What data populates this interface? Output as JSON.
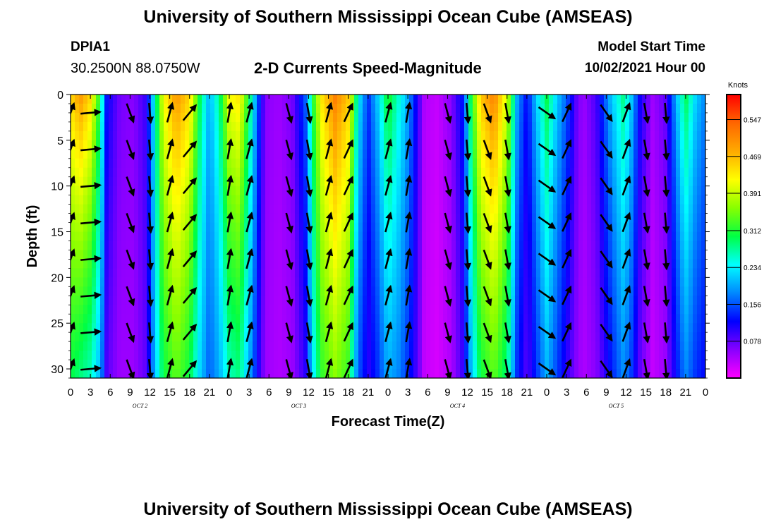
{
  "header": {
    "title_top": "University of Southern Mississippi Ocean Cube (AMSEAS)",
    "title_bottom": "University of Southern Mississippi Ocean Cube (AMSEAS)",
    "station_id": "DPIA1",
    "station_coords": "30.2500N  88.0750W",
    "model_start_label": "Model Start Time",
    "model_start_value": "10/02/2021 Hour 00"
  },
  "chart_data": {
    "type": "heatmap",
    "title": "2-D Currents Speed-Magnitude",
    "xlabel": "Forecast Time(Z)",
    "ylabel": "Depth (ft)",
    "x_tick_labels": [
      "0",
      "3",
      "6",
      "9",
      "12",
      "15",
      "18",
      "21",
      "0",
      "3",
      "6",
      "9",
      "12",
      "15",
      "18",
      "21",
      "0",
      "3",
      "6",
      "9",
      "12",
      "15",
      "18",
      "21",
      "0",
      "3",
      "6",
      "9",
      "12",
      "15",
      "18",
      "21",
      "0"
    ],
    "day_labels": [
      "OCT 2",
      "OCT 3",
      "OCT 4",
      "OCT 5"
    ],
    "xlim_hours": [
      0,
      96
    ],
    "ylim_ft": [
      0,
      31
    ],
    "y_ticks": [
      0,
      5,
      10,
      15,
      20,
      25,
      30
    ],
    "y_reversed": true,
    "colorbar": {
      "title": "Knots",
      "tick_labels": [
        "0.547",
        "0.469",
        "0.391",
        "0.312",
        "0.234",
        "0.156",
        "0.078"
      ],
      "tick_values": [
        0.547,
        0.469,
        0.391,
        0.312,
        0.234,
        0.156,
        0.078
      ],
      "range": [
        0.0,
        0.6
      ],
      "colors": [
        "#ff00ff",
        "#8800ff",
        "#0000ff",
        "#0088ff",
        "#00ffff",
        "#00ff44",
        "#88ff00",
        "#ffff00",
        "#ffaa00",
        "#ff6600",
        "#ff0000"
      ]
    },
    "speed_profile": {
      "hours": [
        0,
        1.5,
        3,
        4.5,
        5.5,
        7.5,
        9.5,
        11.5,
        12.5,
        14,
        16,
        18,
        19.5,
        21,
        22.5,
        24,
        25.5,
        27,
        28.5,
        29.5,
        31.5,
        33.5,
        35.5,
        36.5,
        38,
        40,
        42,
        43.5,
        45,
        46.5,
        48,
        49.5,
        51,
        52.5,
        53.5,
        55.5,
        57.5,
        59.5,
        60.5,
        62,
        64,
        66,
        67.5,
        69,
        70.5,
        72,
        73.5,
        75,
        76.5,
        77.5,
        79.5,
        81.5,
        83.5,
        84.5,
        86,
        88,
        90,
        91.5,
        93,
        94.5,
        96
      ],
      "surface_knots": [
        0.45,
        0.5,
        0.45,
        0.3,
        0.12,
        0.07,
        0.06,
        0.1,
        0.22,
        0.42,
        0.5,
        0.45,
        0.3,
        0.2,
        0.28,
        0.42,
        0.44,
        0.3,
        0.14,
        0.06,
        0.05,
        0.07,
        0.16,
        0.3,
        0.44,
        0.52,
        0.46,
        0.24,
        0.14,
        0.22,
        0.32,
        0.26,
        0.2,
        0.1,
        0.04,
        0.03,
        0.06,
        0.14,
        0.3,
        0.46,
        0.52,
        0.4,
        0.2,
        0.12,
        0.22,
        0.3,
        0.22,
        0.16,
        0.08,
        0.05,
        0.09,
        0.2,
        0.28,
        0.24,
        0.12,
        0.05,
        0.08,
        0.2,
        0.3,
        0.22,
        0.18
      ],
      "bottom_knots": [
        0.3,
        0.28,
        0.26,
        0.2,
        0.08,
        0.05,
        0.05,
        0.08,
        0.18,
        0.3,
        0.34,
        0.3,
        0.22,
        0.16,
        0.2,
        0.26,
        0.28,
        0.2,
        0.1,
        0.05,
        0.04,
        0.05,
        0.1,
        0.22,
        0.32,
        0.36,
        0.32,
        0.16,
        0.1,
        0.14,
        0.2,
        0.18,
        0.14,
        0.08,
        0.03,
        0.02,
        0.04,
        0.1,
        0.2,
        0.3,
        0.34,
        0.28,
        0.14,
        0.08,
        0.14,
        0.2,
        0.15,
        0.1,
        0.06,
        0.04,
        0.06,
        0.12,
        0.18,
        0.16,
        0.08,
        0.03,
        0.05,
        0.12,
        0.18,
        0.14,
        0.12
      ]
    },
    "vector_field": {
      "hours": [
        0,
        3,
        9,
        12,
        15,
        18,
        24,
        27,
        33,
        36,
        39,
        42,
        48,
        51,
        57,
        60,
        63,
        66,
        72,
        75,
        81,
        84,
        87,
        90
      ],
      "depths_ft": [
        2,
        6,
        10,
        14,
        18,
        22,
        26,
        30
      ],
      "direction_deg_from_north": [
        20,
        85,
        160,
        175,
        15,
        40,
        10,
        15,
        165,
        170,
        15,
        25,
        15,
        10,
        165,
        175,
        160,
        170,
        125,
        25,
        145,
        20,
        170,
        175
      ]
    }
  }
}
